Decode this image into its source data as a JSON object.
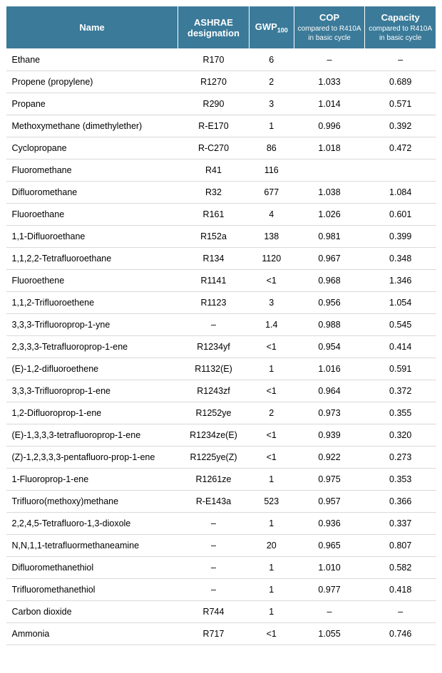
{
  "table": {
    "header_bg": "#3b7a99",
    "header_fg": "#ffffff",
    "row_border": "#d9d9d9",
    "columns": [
      {
        "label": "Name",
        "sub": ""
      },
      {
        "label": "ASHRAE designation",
        "sub": ""
      },
      {
        "label": "GWP",
        "subscript": "100",
        "sub": ""
      },
      {
        "label": "COP",
        "sub": "compared to R410A in basic cycle"
      },
      {
        "label": "Capacity",
        "sub": "compared to R410A in basic cycle"
      }
    ],
    "rows": [
      [
        "Ethane",
        "R170",
        "6",
        "–",
        "–"
      ],
      [
        "Propene (propylene)",
        "R1270",
        "2",
        "1.033",
        "0.689"
      ],
      [
        "Propane",
        "R290",
        "3",
        "1.014",
        "0.571"
      ],
      [
        "Methoxymethane (dimethylether)",
        "R-E170",
        "1",
        "0.996",
        "0.392"
      ],
      [
        "Cyclopropane",
        "R-C270",
        "86",
        "1.018",
        "0.472"
      ],
      [
        "Fluoromethane",
        "R41",
        "116",
        "",
        ""
      ],
      [
        "Difluoromethane",
        "R32",
        "677",
        "1.038",
        "1.084"
      ],
      [
        "Fluoroethane",
        "R161",
        "4",
        "1.026",
        "0.601"
      ],
      [
        "1,1-Difluoroethane",
        "R152a",
        "138",
        "0.981",
        "0.399"
      ],
      [
        "1,1,2,2-Tetrafluoroethane",
        "R134",
        "1120",
        "0.967",
        "0.348"
      ],
      [
        "Fluoroethene",
        "R1141",
        "<1",
        "0.968",
        "1.346"
      ],
      [
        "1,1,2-Trifluoroethene",
        "R1123",
        "3",
        "0.956",
        "1.054"
      ],
      [
        "3,3,3-Trifluoroprop-1-yne",
        "–",
        "1.4",
        "0.988",
        "0.545"
      ],
      [
        "2,3,3,3-Tetrafluoroprop-1-ene",
        "R1234yf",
        "<1",
        "0.954",
        "0.414"
      ],
      [
        "(E)-1,2-difluoroethene",
        "R1132(E)",
        "1",
        "1.016",
        "0.591"
      ],
      [
        "3,3,3-Trifluoroprop-1-ene",
        "R1243zf",
        "<1",
        "0.964",
        "0.372"
      ],
      [
        "1,2-Difluoroprop-1-ene",
        "R1252ye",
        "2",
        "0.973",
        "0.355"
      ],
      [
        "(E)-1,3,3,3-tetrafluoroprop-1-ene",
        "R1234ze(E)",
        "<1",
        "0.939",
        "0.320"
      ],
      [
        "(Z)-1,2,3,3,3-pentafluoro-prop-1-ene",
        "R1225ye(Z)",
        "<1",
        "0.922",
        "0.273"
      ],
      [
        " 1-Fluoroprop-1-ene",
        "R1261ze",
        "1",
        "0.975",
        "0.353"
      ],
      [
        "Trifluoro(methoxy)methane",
        "R-E143a",
        "523",
        "0.957",
        "0.366"
      ],
      [
        "2,2,4,5-Tetrafluoro-1,3-dioxole",
        "–",
        "1",
        "0.936",
        "0.337"
      ],
      [
        "N,N,1,1-tetrafluormethaneamine",
        "–",
        "20",
        "0.965",
        "0.807"
      ],
      [
        "Difluoromethanethiol",
        "–",
        "1",
        "1.010",
        "0.582"
      ],
      [
        "Trifluoromethanethiol",
        "–",
        "1",
        "0.977",
        "0.418"
      ],
      [
        "Carbon dioxide",
        "R744",
        "1",
        "–",
        "–"
      ],
      [
        "Ammonia",
        "R717",
        "<1",
        "1.055",
        "0.746"
      ]
    ]
  }
}
